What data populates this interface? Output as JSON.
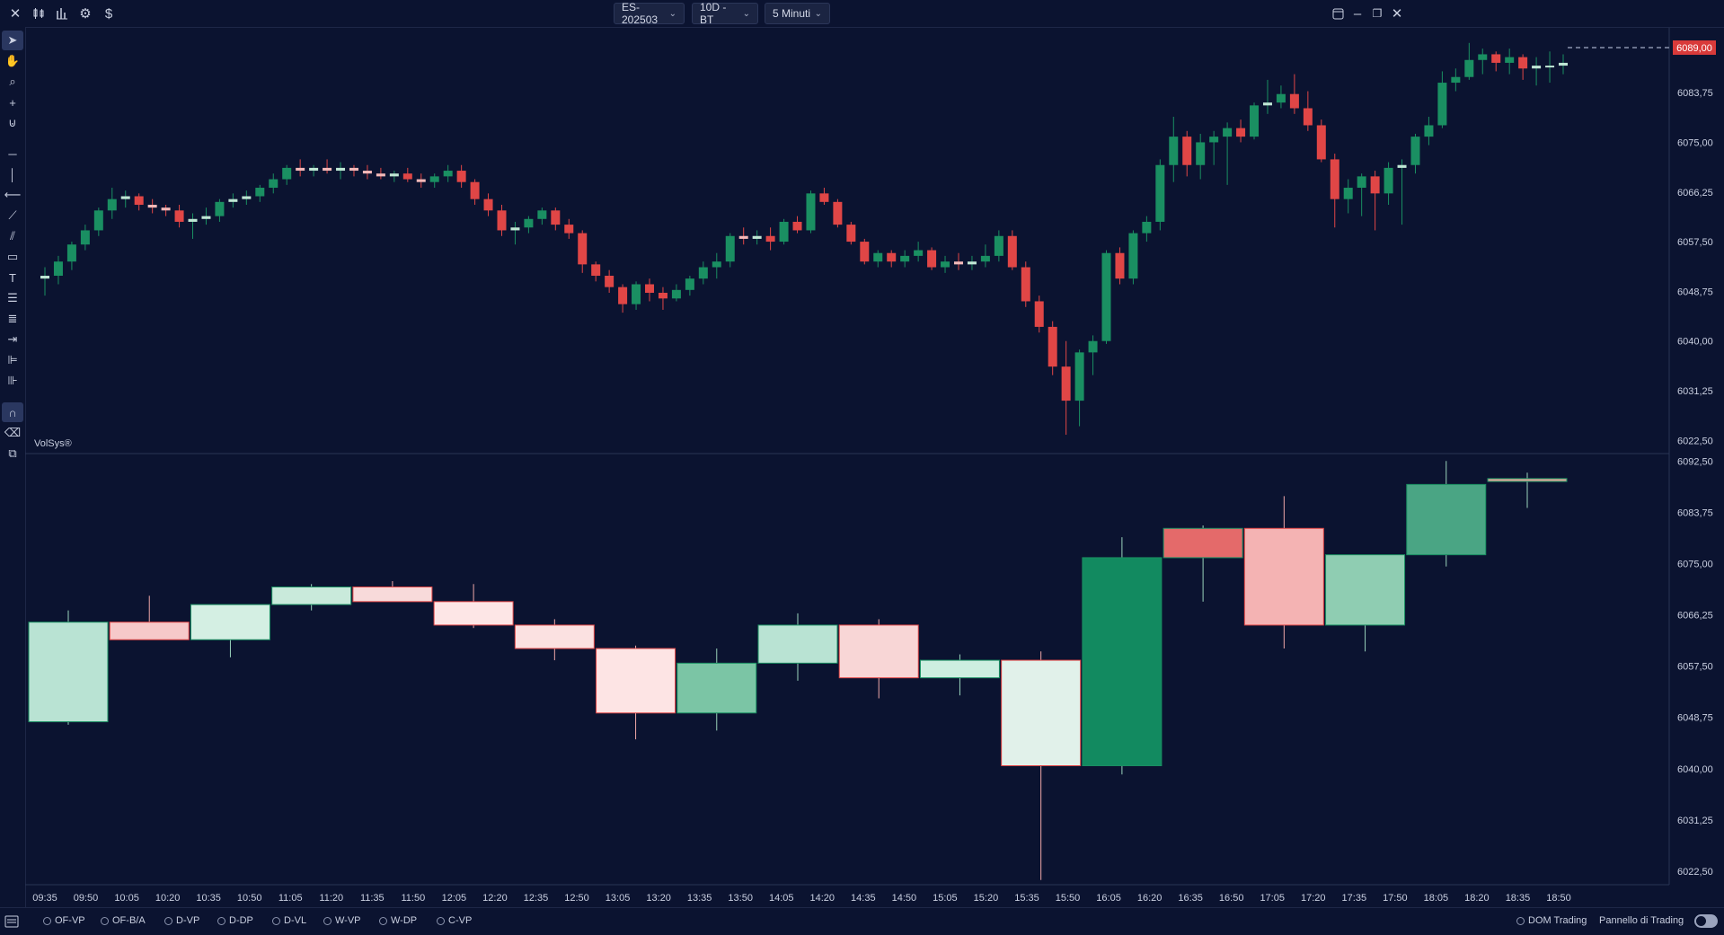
{
  "toolbar": {
    "left_icons": [
      "close-icon",
      "candles-icon",
      "bar-chart-icon",
      "gear-icon",
      "dollar-icon"
    ],
    "symbol": "ES-202503",
    "range": "10D - BT",
    "timeframe": "5 Minuti",
    "window_icons": [
      "panel-icon",
      "minimize-icon",
      "restore-icon",
      "close-window-icon"
    ]
  },
  "drawing_tools": [
    "cursor-icon",
    "hand-icon",
    "zoom-icon",
    "crosshair-icon",
    "magnet-icon",
    "horizontal-line-icon",
    "vertical-line-icon",
    "ray-icon",
    "trendline-icon",
    "channel-icon",
    "rectangle-icon",
    "text-icon",
    "fib-icon",
    "lines-icon",
    "arrow-icon",
    "profile-icon",
    "volume-icon",
    "magnet-active-icon",
    "eraser-icon",
    "layers-icon"
  ],
  "chart_label": "VolSys®",
  "last_price": "6089,00",
  "colors": {
    "background": "#0b1330",
    "up": "#1a8f62",
    "down": "#e04646",
    "last_price": "#d93a3a"
  },
  "upper_axis": [
    "6083,75",
    "6075,00",
    "6066,25",
    "6057,50",
    "6048,75",
    "6040,00",
    "6031,25",
    "6022,50"
  ],
  "lower_axis": [
    "6092,50",
    "6083,75",
    "6075,00",
    "6066,25",
    "6057,50",
    "6048,75",
    "6040,00",
    "6031,25",
    "6022,50"
  ],
  "time_labels": [
    "09:35",
    "09:50",
    "10:05",
    "10:20",
    "10:35",
    "10:50",
    "11:05",
    "11:20",
    "11:35",
    "11:50",
    "12:05",
    "12:20",
    "12:35",
    "12:50",
    "13:05",
    "13:20",
    "13:35",
    "13:50",
    "14:05",
    "14:20",
    "14:35",
    "14:50",
    "15:05",
    "15:20",
    "15:35",
    "15:50",
    "16:05",
    "16:20",
    "16:35",
    "16:50",
    "17:05",
    "17:20",
    "17:35",
    "17:50",
    "18:05",
    "18:20",
    "18:35",
    "18:50"
  ],
  "chart_data": {
    "type": "candlestick",
    "title": "",
    "price_panels": [
      {
        "name": "upper",
        "ylim": [
          6020.5,
          6095.0
        ]
      },
      {
        "name": "lower",
        "ylim": [
          6020.5,
          6093.0
        ]
      }
    ],
    "upper_5min_candles": [
      {
        "o": 6051.0,
        "h": 6053.0,
        "l": 6048.0,
        "c": 6051.5
      },
      {
        "o": 6051.5,
        "h": 6055.0,
        "l": 6050.0,
        "c": 6054.0
      },
      {
        "o": 6054.0,
        "h": 6057.5,
        "l": 6052.5,
        "c": 6057.0
      },
      {
        "o": 6057.0,
        "h": 6060.5,
        "l": 6056.0,
        "c": 6059.5
      },
      {
        "o": 6059.5,
        "h": 6063.5,
        "l": 6058.5,
        "c": 6063.0
      },
      {
        "o": 6063.0,
        "h": 6067.0,
        "l": 6061.5,
        "c": 6065.0
      },
      {
        "o": 6065.0,
        "h": 6066.5,
        "l": 6063.5,
        "c": 6065.5
      },
      {
        "o": 6065.5,
        "h": 6066.0,
        "l": 6063.0,
        "c": 6064.0
      },
      {
        "o": 6064.0,
        "h": 6065.0,
        "l": 6062.5,
        "c": 6063.5
      },
      {
        "o": 6063.5,
        "h": 6064.0,
        "l": 6062.0,
        "c": 6063.0
      },
      {
        "o": 6063.0,
        "h": 6064.0,
        "l": 6060.0,
        "c": 6061.0
      },
      {
        "o": 6061.0,
        "h": 6062.5,
        "l": 6058.0,
        "c": 6061.5
      },
      {
        "o": 6061.5,
        "h": 6063.5,
        "l": 6060.5,
        "c": 6062.0
      },
      {
        "o": 6062.0,
        "h": 6065.0,
        "l": 6061.0,
        "c": 6064.5
      },
      {
        "o": 6064.5,
        "h": 6066.0,
        "l": 6063.5,
        "c": 6065.0
      },
      {
        "o": 6065.0,
        "h": 6066.5,
        "l": 6064.0,
        "c": 6065.5
      },
      {
        "o": 6065.5,
        "h": 6067.5,
        "l": 6064.5,
        "c": 6067.0
      },
      {
        "o": 6067.0,
        "h": 6069.5,
        "l": 6066.0,
        "c": 6068.5
      },
      {
        "o": 6068.5,
        "h": 6071.0,
        "l": 6067.5,
        "c": 6070.5
      },
      {
        "o": 6070.5,
        "h": 6072.0,
        "l": 6069.0,
        "c": 6070.0
      },
      {
        "o": 6070.0,
        "h": 6071.0,
        "l": 6069.0,
        "c": 6070.5
      },
      {
        "o": 6070.5,
        "h": 6072.0,
        "l": 6069.5,
        "c": 6070.0
      },
      {
        "o": 6070.0,
        "h": 6071.5,
        "l": 6068.5,
        "c": 6070.5
      },
      {
        "o": 6070.5,
        "h": 6071.0,
        "l": 6069.0,
        "c": 6070.0
      },
      {
        "o": 6070.0,
        "h": 6071.0,
        "l": 6068.5,
        "c": 6069.5
      },
      {
        "o": 6069.5,
        "h": 6070.5,
        "l": 6068.5,
        "c": 6069.0
      },
      {
        "o": 6069.0,
        "h": 6070.0,
        "l": 6068.0,
        "c": 6069.5
      },
      {
        "o": 6069.5,
        "h": 6070.5,
        "l": 6068.0,
        "c": 6068.5
      },
      {
        "o": 6068.5,
        "h": 6069.5,
        "l": 6067.0,
        "c": 6068.0
      },
      {
        "o": 6068.0,
        "h": 6069.5,
        "l": 6067.0,
        "c": 6069.0
      },
      {
        "o": 6069.0,
        "h": 6071.0,
        "l": 6068.0,
        "c": 6070.0
      },
      {
        "o": 6070.0,
        "h": 6071.0,
        "l": 6067.0,
        "c": 6068.0
      },
      {
        "o": 6068.0,
        "h": 6068.5,
        "l": 6064.0,
        "c": 6065.0
      },
      {
        "o": 6065.0,
        "h": 6066.0,
        "l": 6062.0,
        "c": 6063.0
      },
      {
        "o": 6063.0,
        "h": 6064.0,
        "l": 6058.5,
        "c": 6059.5
      },
      {
        "o": 6059.5,
        "h": 6061.0,
        "l": 6057.0,
        "c": 6060.0
      },
      {
        "o": 6060.0,
        "h": 6062.0,
        "l": 6059.0,
        "c": 6061.5
      },
      {
        "o": 6061.5,
        "h": 6063.5,
        "l": 6060.5,
        "c": 6063.0
      },
      {
        "o": 6063.0,
        "h": 6063.5,
        "l": 6059.5,
        "c": 6060.5
      },
      {
        "o": 6060.5,
        "h": 6061.5,
        "l": 6058.0,
        "c": 6059.0
      },
      {
        "o": 6059.0,
        "h": 6059.5,
        "l": 6052.0,
        "c": 6053.5
      },
      {
        "o": 6053.5,
        "h": 6054.0,
        "l": 6050.5,
        "c": 6051.5
      },
      {
        "o": 6051.5,
        "h": 6052.5,
        "l": 6048.5,
        "c": 6049.5
      },
      {
        "o": 6049.5,
        "h": 6050.0,
        "l": 6045.0,
        "c": 6046.5
      },
      {
        "o": 6046.5,
        "h": 6050.5,
        "l": 6045.5,
        "c": 6050.0
      },
      {
        "o": 6050.0,
        "h": 6051.0,
        "l": 6047.0,
        "c": 6048.5
      },
      {
        "o": 6048.5,
        "h": 6049.5,
        "l": 6045.5,
        "c": 6047.5
      },
      {
        "o": 6047.5,
        "h": 6050.0,
        "l": 6047.0,
        "c": 6049.0
      },
      {
        "o": 6049.0,
        "h": 6051.5,
        "l": 6048.0,
        "c": 6051.0
      },
      {
        "o": 6051.0,
        "h": 6054.0,
        "l": 6050.0,
        "c": 6053.0
      },
      {
        "o": 6053.0,
        "h": 6055.5,
        "l": 6051.0,
        "c": 6054.0
      },
      {
        "o": 6054.0,
        "h": 6059.0,
        "l": 6053.0,
        "c": 6058.5
      },
      {
        "o": 6058.5,
        "h": 6060.0,
        "l": 6057.0,
        "c": 6058.0
      },
      {
        "o": 6058.0,
        "h": 6059.5,
        "l": 6057.0,
        "c": 6058.5
      },
      {
        "o": 6058.5,
        "h": 6060.0,
        "l": 6056.0,
        "c": 6057.5
      },
      {
        "o": 6057.5,
        "h": 6061.5,
        "l": 6057.0,
        "c": 6061.0
      },
      {
        "o": 6061.0,
        "h": 6062.0,
        "l": 6059.0,
        "c": 6059.5
      },
      {
        "o": 6059.5,
        "h": 6066.5,
        "l": 6059.0,
        "c": 6066.0
      },
      {
        "o": 6066.0,
        "h": 6067.0,
        "l": 6064.0,
        "c": 6064.5
      },
      {
        "o": 6064.5,
        "h": 6065.0,
        "l": 6060.0,
        "c": 6060.5
      },
      {
        "o": 6060.5,
        "h": 6061.0,
        "l": 6057.0,
        "c": 6057.5
      },
      {
        "o": 6057.5,
        "h": 6058.0,
        "l": 6053.5,
        "c": 6054.0
      },
      {
        "o": 6054.0,
        "h": 6056.0,
        "l": 6053.0,
        "c": 6055.5
      },
      {
        "o": 6055.5,
        "h": 6056.0,
        "l": 6053.0,
        "c": 6054.0
      },
      {
        "o": 6054.0,
        "h": 6056.0,
        "l": 6053.0,
        "c": 6055.0
      },
      {
        "o": 6055.0,
        "h": 6057.5,
        "l": 6054.0,
        "c": 6056.0
      },
      {
        "o": 6056.0,
        "h": 6056.5,
        "l": 6052.5,
        "c": 6053.0
      },
      {
        "o": 6053.0,
        "h": 6055.0,
        "l": 6052.0,
        "c": 6054.0
      },
      {
        "o": 6054.0,
        "h": 6055.5,
        "l": 6052.5,
        "c": 6053.5
      },
      {
        "o": 6053.5,
        "h": 6055.0,
        "l": 6052.5,
        "c": 6054.0
      },
      {
        "o": 6054.0,
        "h": 6057.0,
        "l": 6053.0,
        "c": 6055.0
      },
      {
        "o": 6055.0,
        "h": 6059.5,
        "l": 6054.0,
        "c": 6058.5
      },
      {
        "o": 6058.5,
        "h": 6059.5,
        "l": 6052.5,
        "c": 6053.0
      },
      {
        "o": 6053.0,
        "h": 6054.0,
        "l": 6046.0,
        "c": 6047.0
      },
      {
        "o": 6047.0,
        "h": 6048.0,
        "l": 6041.5,
        "c": 6042.5
      },
      {
        "o": 6042.5,
        "h": 6043.5,
        "l": 6034.0,
        "c": 6035.5
      },
      {
        "o": 6035.5,
        "h": 6040.0,
        "l": 6023.5,
        "c": 6029.5
      },
      {
        "o": 6029.5,
        "h": 6038.5,
        "l": 6025.0,
        "c": 6038.0
      },
      {
        "o": 6038.0,
        "h": 6041.0,
        "l": 6034.0,
        "c": 6040.0
      },
      {
        "o": 6040.0,
        "h": 6056.0,
        "l": 6039.5,
        "c": 6055.5
      },
      {
        "o": 6055.5,
        "h": 6056.5,
        "l": 6050.0,
        "c": 6051.0
      },
      {
        "o": 6051.0,
        "h": 6059.5,
        "l": 6050.0,
        "c": 6059.0
      },
      {
        "o": 6059.0,
        "h": 6062.0,
        "l": 6057.5,
        "c": 6061.0
      },
      {
        "o": 6061.0,
        "h": 6072.0,
        "l": 6059.5,
        "c": 6071.0
      },
      {
        "o": 6071.0,
        "h": 6079.5,
        "l": 6068.0,
        "c": 6076.0
      },
      {
        "o": 6076.0,
        "h": 6077.0,
        "l": 6069.0,
        "c": 6071.0
      },
      {
        "o": 6071.0,
        "h": 6076.5,
        "l": 6068.5,
        "c": 6075.0
      },
      {
        "o": 6075.0,
        "h": 6077.0,
        "l": 6071.0,
        "c": 6076.0
      },
      {
        "o": 6076.0,
        "h": 6078.5,
        "l": 6067.5,
        "c": 6077.5
      },
      {
        "o": 6077.5,
        "h": 6079.0,
        "l": 6075.0,
        "c": 6076.0
      },
      {
        "o": 6076.0,
        "h": 6082.0,
        "l": 6075.5,
        "c": 6081.5
      },
      {
        "o": 6081.5,
        "h": 6086.0,
        "l": 6080.0,
        "c": 6082.0
      },
      {
        "o": 6082.0,
        "h": 6085.0,
        "l": 6081.0,
        "c": 6083.5
      },
      {
        "o": 6083.5,
        "h": 6087.0,
        "l": 6080.0,
        "c": 6081.0
      },
      {
        "o": 6081.0,
        "h": 6084.0,
        "l": 6077.0,
        "c": 6078.0
      },
      {
        "o": 6078.0,
        "h": 6079.0,
        "l": 6071.5,
        "c": 6072.0
      },
      {
        "o": 6072.0,
        "h": 6073.0,
        "l": 6060.0,
        "c": 6065.0
      },
      {
        "o": 6065.0,
        "h": 6068.5,
        "l": 6062.5,
        "c": 6067.0
      },
      {
        "o": 6067.0,
        "h": 6069.5,
        "l": 6062.0,
        "c": 6069.0
      },
      {
        "o": 6069.0,
        "h": 6070.0,
        "l": 6059.5,
        "c": 6066.0
      },
      {
        "o": 6066.0,
        "h": 6071.5,
        "l": 6064.0,
        "c": 6070.5
      },
      {
        "o": 6070.5,
        "h": 6072.0,
        "l": 6060.5,
        "c": 6071.0
      },
      {
        "o": 6071.0,
        "h": 6076.5,
        "l": 6069.5,
        "c": 6076.0
      },
      {
        "o": 6076.0,
        "h": 6079.5,
        "l": 6074.5,
        "c": 6078.0
      },
      {
        "o": 6078.0,
        "h": 6087.5,
        "l": 6077.5,
        "c": 6085.5
      },
      {
        "o": 6085.5,
        "h": 6088.0,
        "l": 6084.0,
        "c": 6086.5
      },
      {
        "o": 6086.5,
        "h": 6092.5,
        "l": 6086.0,
        "c": 6089.5
      },
      {
        "o": 6089.5,
        "h": 6091.5,
        "l": 6087.0,
        "c": 6090.5
      },
      {
        "o": 6090.5,
        "h": 6091.0,
        "l": 6087.5,
        "c": 6089.0
      },
      {
        "o": 6089.0,
        "h": 6091.5,
        "l": 6087.0,
        "c": 6090.0
      },
      {
        "o": 6090.0,
        "h": 6090.5,
        "l": 6086.0,
        "c": 6088.0
      },
      {
        "o": 6088.0,
        "h": 6090.0,
        "l": 6085.0,
        "c": 6088.5
      },
      {
        "o": 6088.5,
        "h": 6091.0,
        "l": 6085.5,
        "c": 6088.5
      },
      {
        "o": 6088.5,
        "h": 6090.5,
        "l": 6087.0,
        "c": 6089.0
      }
    ],
    "lower_15min_candles": [
      {
        "o": 6048.0,
        "h": 6067.0,
        "l": 6047.5,
        "c": 6065.0
      },
      {
        "o": 6065.0,
        "h": 6069.5,
        "l": 6062.5,
        "c": 6062.0
      },
      {
        "o": 6062.0,
        "h": 6068.0,
        "l": 6059.0,
        "c": 6068.0
      },
      {
        "o": 6068.0,
        "h": 6071.5,
        "l": 6067.0,
        "c": 6071.0
      },
      {
        "o": 6071.0,
        "h": 6072.0,
        "l": 6069.0,
        "c": 6068.5
      },
      {
        "o": 6068.5,
        "h": 6071.5,
        "l": 6064.0,
        "c": 6064.5
      },
      {
        "o": 6064.5,
        "h": 6065.5,
        "l": 6058.5,
        "c": 6060.5
      },
      {
        "o": 6060.5,
        "h": 6061.0,
        "l": 6045.0,
        "c": 6049.5
      },
      {
        "o": 6049.5,
        "h": 6060.5,
        "l": 6046.5,
        "c": 6058.0
      },
      {
        "o": 6058.0,
        "h": 6066.5,
        "l": 6055.0,
        "c": 6064.5
      },
      {
        "o": 6064.5,
        "h": 6065.5,
        "l": 6052.0,
        "c": 6055.5
      },
      {
        "o": 6055.5,
        "h": 6059.5,
        "l": 6052.5,
        "c": 6058.5
      },
      {
        "o": 6058.5,
        "h": 6060.0,
        "l": 6021.0,
        "c": 6040.5
      },
      {
        "o": 6040.5,
        "h": 6079.5,
        "l": 6039.0,
        "c": 6076.0
      },
      {
        "o": 6076.0,
        "h": 6081.5,
        "l": 6068.5,
        "c": 6081.0
      },
      {
        "o": 6081.0,
        "h": 6086.5,
        "l": 6060.5,
        "c": 6064.5
      },
      {
        "o": 6064.5,
        "h": 6076.5,
        "l": 6060.0,
        "c": 6076.5
      },
      {
        "o": 6076.5,
        "h": 6092.5,
        "l": 6074.5,
        "c": 6088.5
      },
      {
        "o": 6089.0,
        "h": 6090.5,
        "l": 6084.5,
        "c": 6089.5
      }
    ]
  },
  "indicators": [
    "OF-VP",
    "OF-B/A",
    "D-VP",
    "D-DP",
    "D-VL",
    "W-VP",
    "W-DP",
    "C-VP"
  ],
  "dom_trading": "DOM Trading",
  "pannello_trading": "Pannello di Trading"
}
